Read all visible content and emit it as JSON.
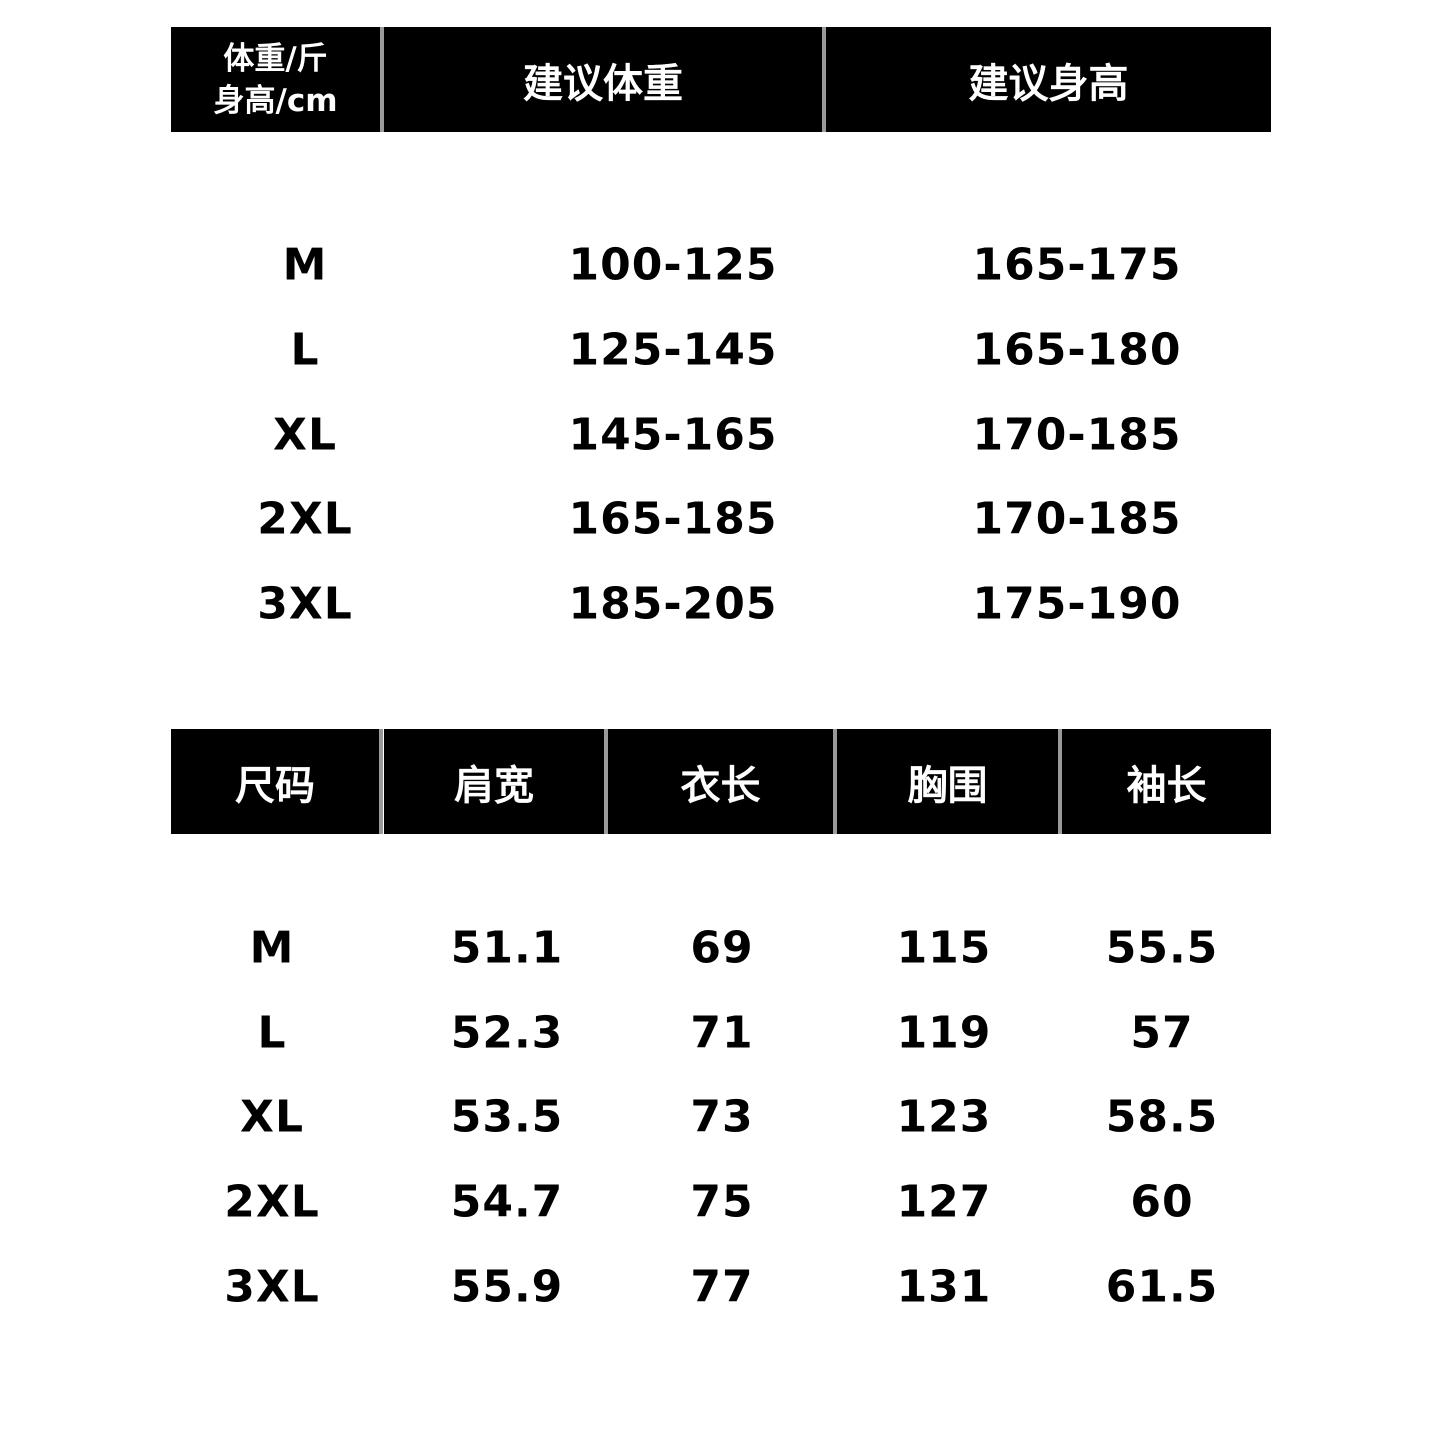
{
  "table1": {
    "header": {
      "corner_line1": "体重/斤",
      "corner_line2": "身高/cm",
      "weight": "建议体重",
      "height": "建议身高"
    },
    "rows": [
      {
        "size": "M",
        "weight": "100-125",
        "height": "165-175"
      },
      {
        "size": "L",
        "weight": "125-145",
        "height": "165-180"
      },
      {
        "size": "XL",
        "weight": "145-165",
        "height": "170-185"
      },
      {
        "size": "2XL",
        "weight": "165-185",
        "height": "170-185"
      },
      {
        "size": "3XL",
        "weight": "185-205",
        "height": "175-190"
      }
    ]
  },
  "table2": {
    "header": [
      "尺码",
      "肩宽",
      "衣长",
      "胸围",
      "袖长"
    ],
    "rows": [
      [
        "M",
        "51.1",
        "69",
        "115",
        "55.5"
      ],
      [
        "L",
        "52.3",
        "71",
        "119",
        "57"
      ],
      [
        "XL",
        "53.5",
        "73",
        "123",
        "58.5"
      ],
      [
        "2XL",
        "54.7",
        "75",
        "127",
        "60"
      ],
      [
        "3XL",
        "55.9",
        "77",
        "131",
        "61.5"
      ]
    ]
  },
  "colors": {
    "header_bg": "#000000",
    "header_text": "#ffffff",
    "separator": "#9a9a9a"
  }
}
